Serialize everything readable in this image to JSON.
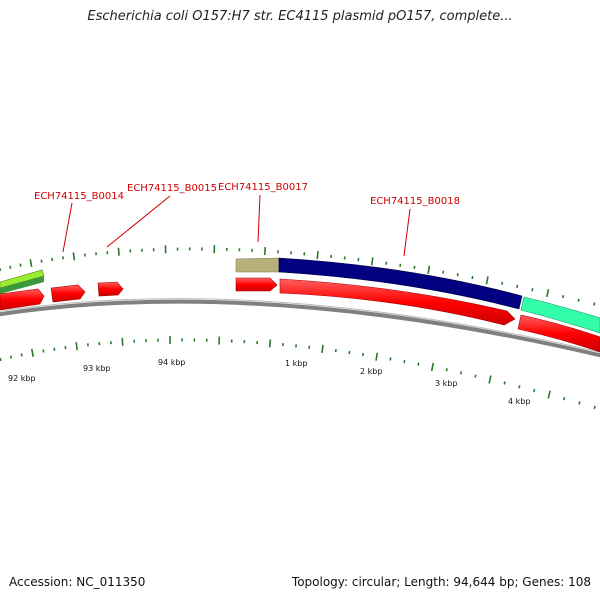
{
  "title": "Escherichia coli O157:H7 str. EC4115 plasmid pO157, complete...",
  "footer": {
    "accession": "Accession: NC_011350",
    "summary": "Topology: circular; Length: 94,644 bp; Genes: 108"
  },
  "gene_labels": [
    "ECH74115_B0014",
    "ECH74115_B0015",
    "ECH74115_B0017",
    "ECH74115_B0018"
  ],
  "scale_labels": [
    "92 kbp",
    "93 kbp",
    "94 kbp",
    "1 kbp",
    "2 kbp",
    "3 kbp",
    "4 kbp"
  ],
  "colors": {
    "backbone": "#808080",
    "cds": "#ff0000",
    "tick": "#2a7a2a",
    "gene_label": "#cc0000",
    "feature_navy": "#000080",
    "feature_olive": "#b8b07a",
    "feature_aqua": "#33ffaa",
    "feature_lime": "#99ee33"
  }
}
